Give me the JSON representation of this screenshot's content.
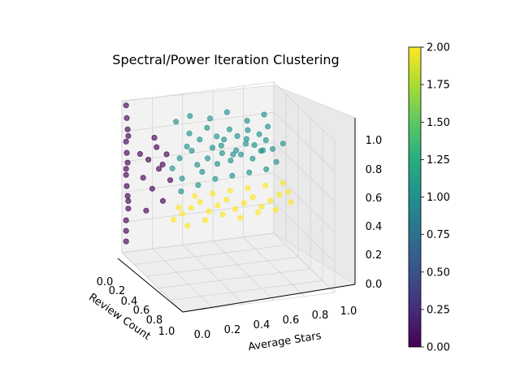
{
  "chart_data": {
    "type": "scatter",
    "title": "Spectral/Power Iteration Clustering",
    "xlabel": "Review Count",
    "ylabel": "Average Stars",
    "zlabel": "",
    "xlim": [
      0.0,
      1.0
    ],
    "ylim": [
      0.0,
      1.0
    ],
    "zlim": [
      0.0,
      1.0
    ],
    "x_ticks": [
      "0.0",
      "0.2",
      "0.4",
      "0.6",
      "0.8",
      "1.0"
    ],
    "y_ticks": [
      "0.0",
      "0.2",
      "0.4",
      "0.6",
      "0.8",
      "1.0"
    ],
    "z_ticks": [
      "0.0",
      "0.2",
      "0.4",
      "0.6",
      "0.8",
      "1.0"
    ],
    "grid": true,
    "colormap": "viridis",
    "colorbar": {
      "min": 0.0,
      "max": 2.0,
      "ticks": [
        "0.00",
        "0.25",
        "0.50",
        "0.75",
        "1.00",
        "1.25",
        "1.50",
        "1.75",
        "2.00"
      ]
    },
    "series": [
      {
        "cluster": 0,
        "color": "#440154",
        "points": [
          [
            0.02,
            0.02,
            0.15
          ],
          [
            0.02,
            0.02,
            0.22
          ],
          [
            0.03,
            0.03,
            0.3
          ],
          [
            0.02,
            0.03,
            0.38
          ],
          [
            0.03,
            0.02,
            0.45
          ],
          [
            0.02,
            0.02,
            0.52
          ],
          [
            0.02,
            0.03,
            0.6
          ],
          [
            0.03,
            0.02,
            0.67
          ],
          [
            0.02,
            0.02,
            0.74
          ],
          [
            0.02,
            0.03,
            0.82
          ],
          [
            0.03,
            0.02,
            0.9
          ],
          [
            0.02,
            0.02,
            0.98
          ],
          [
            0.02,
            0.02,
            0.08
          ],
          [
            0.03,
            0.03,
            0.35
          ],
          [
            0.02,
            0.02,
            0.56
          ],
          [
            0.03,
            0.03,
            0.78
          ],
          [
            0.05,
            0.12,
            0.5
          ],
          [
            0.06,
            0.15,
            0.62
          ],
          [
            0.05,
            0.18,
            0.42
          ],
          [
            0.07,
            0.2,
            0.7
          ],
          [
            0.06,
            0.22,
            0.55
          ],
          [
            0.05,
            0.25,
            0.33
          ],
          [
            0.06,
            0.27,
            0.64
          ],
          [
            0.07,
            0.29,
            0.47
          ],
          [
            0.05,
            0.14,
            0.28
          ],
          [
            0.06,
            0.19,
            0.76
          ],
          [
            0.07,
            0.24,
            0.58
          ],
          [
            0.05,
            0.1,
            0.66
          ]
        ]
      },
      {
        "cluster": 1,
        "color": "#21918c",
        "points": [
          [
            0.08,
            0.3,
            0.55
          ],
          [
            0.1,
            0.34,
            0.62
          ],
          [
            0.12,
            0.38,
            0.7
          ],
          [
            0.09,
            0.36,
            0.48
          ],
          [
            0.11,
            0.4,
            0.78
          ],
          [
            0.14,
            0.44,
            0.58
          ],
          [
            0.1,
            0.42,
            0.66
          ],
          [
            0.13,
            0.46,
            0.74
          ],
          [
            0.12,
            0.48,
            0.52
          ],
          [
            0.15,
            0.5,
            0.82
          ],
          [
            0.11,
            0.52,
            0.6
          ],
          [
            0.14,
            0.54,
            0.68
          ],
          [
            0.16,
            0.56,
            0.76
          ],
          [
            0.12,
            0.58,
            0.56
          ],
          [
            0.15,
            0.6,
            0.64
          ],
          [
            0.13,
            0.62,
            0.72
          ],
          [
            0.17,
            0.64,
            0.8
          ],
          [
            0.14,
            0.66,
            0.58
          ],
          [
            0.18,
            0.68,
            0.66
          ],
          [
            0.15,
            0.7,
            0.74
          ],
          [
            0.16,
            0.72,
            0.62
          ],
          [
            0.19,
            0.74,
            0.7
          ],
          [
            0.17,
            0.76,
            0.78
          ],
          [
            0.2,
            0.78,
            0.6
          ],
          [
            0.18,
            0.8,
            0.68
          ],
          [
            0.21,
            0.82,
            0.76
          ],
          [
            0.19,
            0.84,
            0.64
          ],
          [
            0.22,
            0.86,
            0.72
          ],
          [
            0.2,
            0.88,
            0.8
          ],
          [
            0.23,
            0.9,
            0.66
          ],
          [
            0.09,
            0.32,
            0.86
          ],
          [
            0.12,
            0.4,
            0.9
          ],
          [
            0.15,
            0.52,
            0.88
          ],
          [
            0.18,
            0.62,
            0.92
          ],
          [
            0.21,
            0.74,
            0.86
          ],
          [
            0.24,
            0.84,
            0.9
          ],
          [
            0.1,
            0.35,
            0.4
          ],
          [
            0.13,
            0.45,
            0.44
          ],
          [
            0.16,
            0.55,
            0.48
          ],
          [
            0.19,
            0.65,
            0.5
          ],
          [
            0.22,
            0.75,
            0.52
          ],
          [
            0.25,
            0.85,
            0.54
          ],
          [
            0.3,
            0.7,
            0.78
          ],
          [
            0.28,
            0.62,
            0.68
          ],
          [
            0.26,
            0.55,
            0.74
          ],
          [
            0.32,
            0.8,
            0.7
          ],
          [
            0.34,
            0.88,
            0.62
          ],
          [
            0.35,
            0.92,
            0.74
          ]
        ]
      },
      {
        "cluster": 2,
        "color": "#fde725",
        "points": [
          [
            0.1,
            0.3,
            0.22
          ],
          [
            0.12,
            0.35,
            0.26
          ],
          [
            0.14,
            0.4,
            0.3
          ],
          [
            0.16,
            0.45,
            0.34
          ],
          [
            0.18,
            0.5,
            0.28
          ],
          [
            0.2,
            0.55,
            0.32
          ],
          [
            0.22,
            0.6,
            0.36
          ],
          [
            0.24,
            0.65,
            0.3
          ],
          [
            0.26,
            0.7,
            0.34
          ],
          [
            0.28,
            0.75,
            0.38
          ],
          [
            0.3,
            0.8,
            0.32
          ],
          [
            0.32,
            0.85,
            0.36
          ],
          [
            0.34,
            0.9,
            0.4
          ],
          [
            0.36,
            0.95,
            0.42
          ],
          [
            0.13,
            0.38,
            0.18
          ],
          [
            0.17,
            0.48,
            0.22
          ],
          [
            0.21,
            0.58,
            0.26
          ],
          [
            0.25,
            0.68,
            0.24
          ],
          [
            0.29,
            0.78,
            0.28
          ],
          [
            0.33,
            0.88,
            0.3
          ],
          [
            0.15,
            0.42,
            0.38
          ],
          [
            0.19,
            0.52,
            0.4
          ],
          [
            0.23,
            0.62,
            0.42
          ],
          [
            0.27,
            0.72,
            0.44
          ],
          [
            0.31,
            0.82,
            0.46
          ],
          [
            0.35,
            0.92,
            0.48
          ],
          [
            0.38,
            0.96,
            0.36
          ],
          [
            0.11,
            0.33,
            0.3
          ]
        ]
      }
    ]
  }
}
